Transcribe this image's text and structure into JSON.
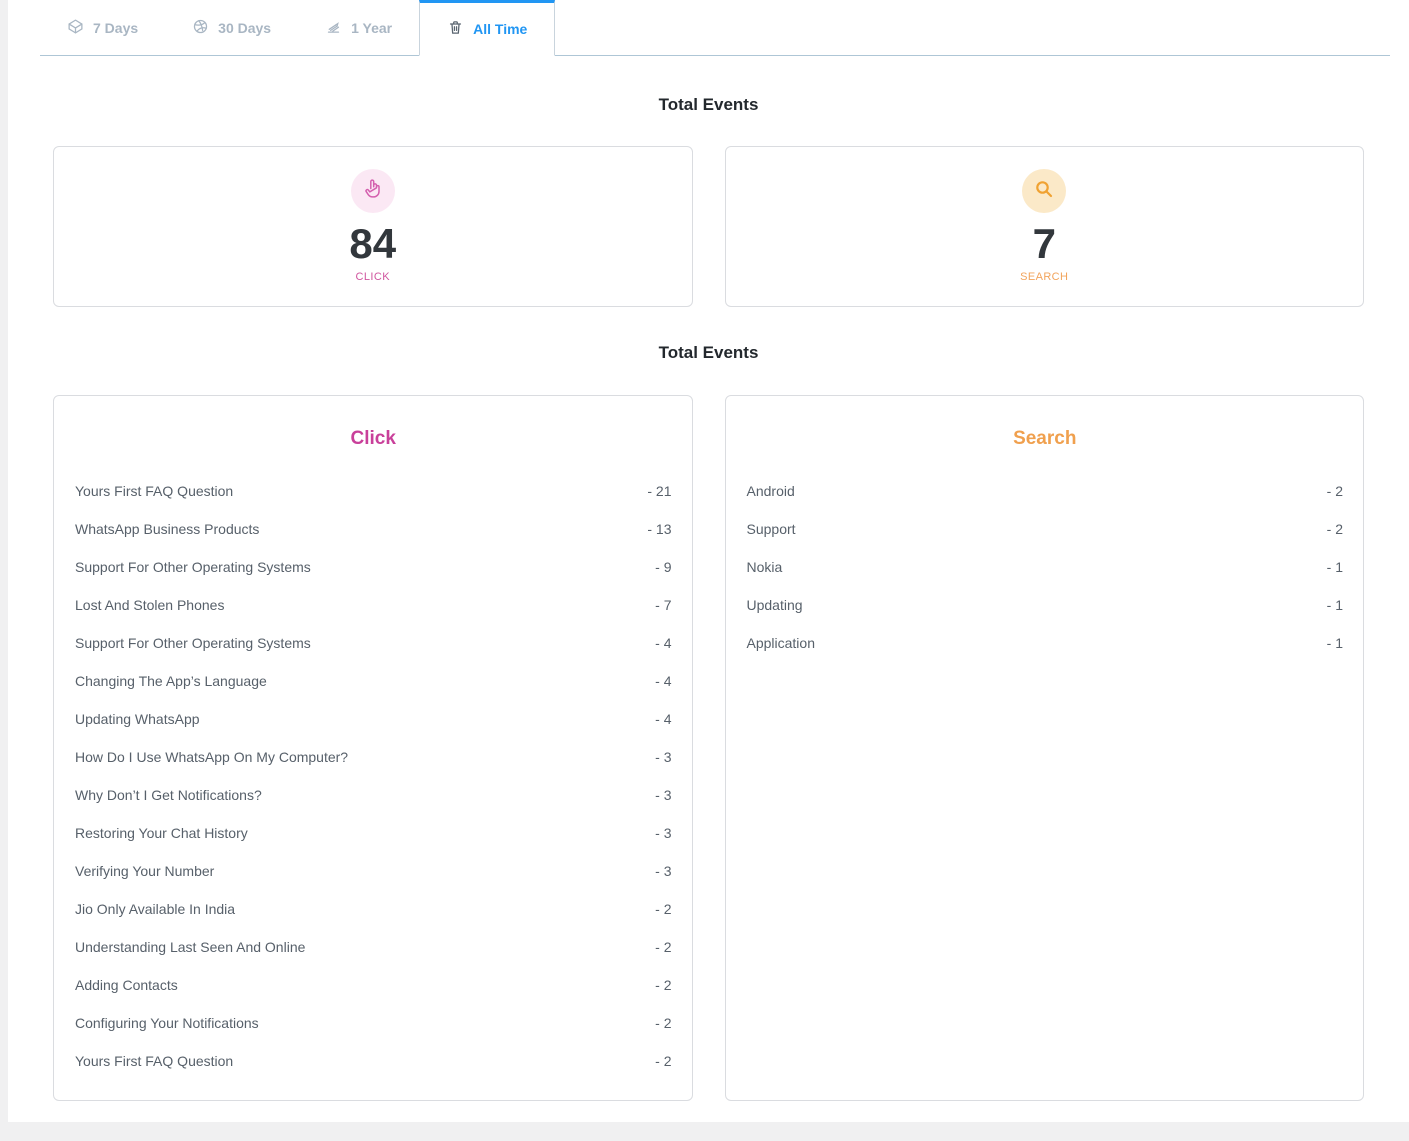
{
  "tabs": {
    "items": [
      {
        "label": "7 Days",
        "icon": "box-icon",
        "active": false
      },
      {
        "label": "30 Days",
        "icon": "ball-icon",
        "active": false
      },
      {
        "label": "1 Year",
        "icon": "signature-icon",
        "active": false
      },
      {
        "label": "All Time",
        "icon": "trash-icon",
        "active": true
      }
    ]
  },
  "sections": {
    "totals_heading": "Total Events",
    "breakdown_heading": "Total Events"
  },
  "totals": [
    {
      "label": "CLICK",
      "value": "84",
      "icon": "pointer-hand-icon"
    },
    {
      "label": "SEARCH",
      "value": "7",
      "icon": "search-icon"
    }
  ],
  "breakdown": {
    "click": {
      "title": "Click",
      "items": [
        {
          "label": "Yours First FAQ Question",
          "count": "- 21"
        },
        {
          "label": "WhatsApp Business Products",
          "count": "- 13"
        },
        {
          "label": "Support For Other Operating Systems",
          "count": "- 9"
        },
        {
          "label": "Lost And Stolen Phones",
          "count": "- 7"
        },
        {
          "label": "Support For Other Operating Systems",
          "count": "- 4"
        },
        {
          "label": "Changing The App’s Language",
          "count": "- 4"
        },
        {
          "label": "Updating WhatsApp",
          "count": "- 4"
        },
        {
          "label": "How Do I Use WhatsApp On My Computer?",
          "count": "- 3"
        },
        {
          "label": "Why Don’t I Get Notifications?",
          "count": "- 3"
        },
        {
          "label": "Restoring Your Chat History",
          "count": "- 3"
        },
        {
          "label": "Verifying Your Number",
          "count": "- 3"
        },
        {
          "label": "Jio Only Available In India",
          "count": "- 2"
        },
        {
          "label": "Understanding Last Seen And Online",
          "count": "- 2"
        },
        {
          "label": "Adding Contacts",
          "count": "- 2"
        },
        {
          "label": "Configuring Your Notifications",
          "count": "- 2"
        },
        {
          "label": "Yours First FAQ Question",
          "count": "- 2"
        }
      ]
    },
    "search": {
      "title": "Search",
      "items": [
        {
          "label": "Android",
          "count": "- 2"
        },
        {
          "label": "Support",
          "count": "- 2"
        },
        {
          "label": "Nokia",
          "count": "- 1"
        },
        {
          "label": "Updating",
          "count": "- 1"
        },
        {
          "label": "Application",
          "count": "- 1"
        }
      ]
    }
  },
  "colors": {
    "active_tab": "#2196f3",
    "inactive_tab": "#a9b6c3",
    "tabbar_border": "#aec6d6",
    "click_accent": "#c9409a",
    "click_label": "#d0569f",
    "click_circle_bg": "#fbe8f4",
    "click_icon": "#d45fae",
    "search_accent": "#f0a04e",
    "search_label": "#f2a45c",
    "search_circle_bg": "#fbe9c8",
    "search_icon": "#f0a232",
    "value_text": "#32373c",
    "row_text": "#57606a",
    "card_border": "#dadce0",
    "page_bg": "#f0f0f1"
  }
}
